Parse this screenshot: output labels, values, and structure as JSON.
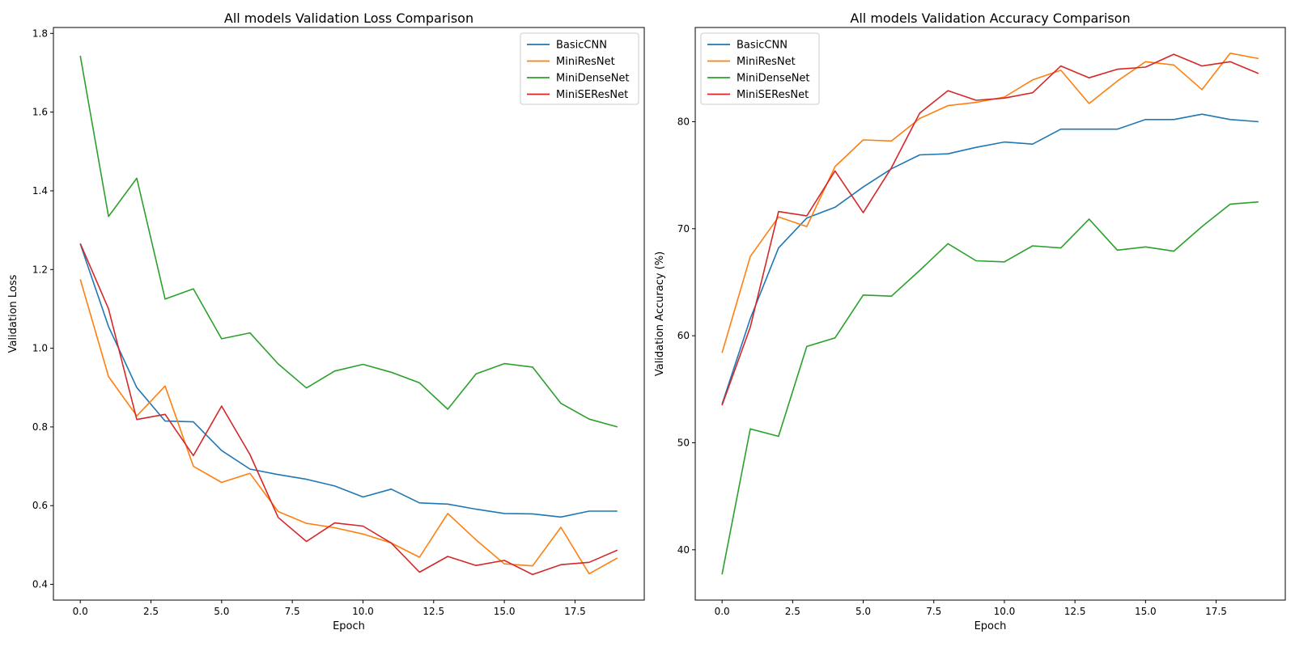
{
  "chart_data": [
    {
      "type": "line",
      "title": "All models Validation Loss Comparison",
      "xlabel": "Epoch",
      "ylabel": "Validation Loss",
      "xlim": [
        -0.95,
        19.95
      ],
      "ylim": [
        0.36,
        1.815
      ],
      "xticks": [
        0,
        2.5,
        5,
        7.5,
        10,
        12.5,
        15,
        17.5
      ],
      "xtick_labels": [
        "0.0",
        "2.5",
        "5.0",
        "7.5",
        "10.0",
        "12.5",
        "15.0",
        "17.5"
      ],
      "yticks": [
        0.4,
        0.6,
        0.8,
        1.0,
        1.2,
        1.4,
        1.6,
        1.8
      ],
      "ytick_labels": [
        "0.4",
        "0.6",
        "0.8",
        "1.0",
        "1.2",
        "1.4",
        "1.6",
        "1.8"
      ],
      "legend_position": "top-right",
      "grid": false,
      "x": [
        0,
        1,
        2,
        3,
        4,
        5,
        6,
        7,
        8,
        9,
        10,
        11,
        12,
        13,
        14,
        15,
        16,
        17,
        18,
        19
      ],
      "series": [
        {
          "name": "BasicCNN",
          "color": "#1f77b4",
          "values": [
            1.265,
            1.055,
            0.9,
            0.815,
            0.813,
            0.74,
            0.693,
            0.679,
            0.667,
            0.65,
            0.622,
            0.642,
            0.607,
            0.604,
            0.591,
            0.58,
            0.579,
            0.571,
            0.586,
            0.586
          ]
        },
        {
          "name": "MiniResNet",
          "color": "#ff7f0e",
          "values": [
            1.175,
            0.928,
            0.828,
            0.904,
            0.7,
            0.659,
            0.682,
            0.585,
            0.555,
            0.544,
            0.528,
            0.505,
            0.469,
            0.58,
            0.513,
            0.452,
            0.447,
            0.545,
            0.427,
            0.467
          ]
        },
        {
          "name": "MiniDenseNet",
          "color": "#2ca02c",
          "values": [
            1.743,
            1.335,
            1.432,
            1.125,
            1.151,
            1.024,
            1.039,
            0.96,
            0.899,
            0.942,
            0.959,
            0.939,
            0.912,
            0.845,
            0.935,
            0.961,
            0.952,
            0.86,
            0.82,
            0.8
          ]
        },
        {
          "name": "MiniSEResNet",
          "color": "#d62728",
          "values": [
            1.266,
            1.1,
            0.819,
            0.832,
            0.727,
            0.853,
            0.73,
            0.57,
            0.509,
            0.556,
            0.548,
            0.505,
            0.431,
            0.471,
            0.448,
            0.461,
            0.425,
            0.45,
            0.456,
            0.487
          ]
        }
      ]
    },
    {
      "type": "line",
      "title": "All models Validation Accuracy Comparison",
      "xlabel": "Epoch",
      "ylabel": "Validation Accuracy (%)",
      "xlim": [
        -0.95,
        19.95
      ],
      "ylim": [
        35.3,
        88.8
      ],
      "xticks": [
        0,
        2.5,
        5,
        7.5,
        10,
        12.5,
        15,
        17.5
      ],
      "xtick_labels": [
        "0.0",
        "2.5",
        "5.0",
        "7.5",
        "10.0",
        "12.5",
        "15.0",
        "17.5"
      ],
      "yticks": [
        40,
        50,
        60,
        70,
        80
      ],
      "ytick_labels": [
        "40",
        "50",
        "60",
        "70",
        "80"
      ],
      "legend_position": "top-left",
      "grid": false,
      "x": [
        0,
        1,
        2,
        3,
        4,
        5,
        6,
        7,
        8,
        9,
        10,
        11,
        12,
        13,
        14,
        15,
        16,
        17,
        18,
        19
      ],
      "series": [
        {
          "name": "BasicCNN",
          "color": "#1f77b4",
          "values": [
            53.6,
            61.6,
            68.2,
            71.0,
            72.0,
            73.9,
            75.6,
            76.9,
            77.0,
            77.6,
            78.1,
            77.9,
            79.3,
            79.3,
            79.3,
            80.2,
            80.2,
            80.7,
            80.2,
            80.0
          ]
        },
        {
          "name": "MiniResNet",
          "color": "#ff7f0e",
          "values": [
            58.4,
            67.4,
            71.1,
            70.2,
            75.8,
            78.3,
            78.2,
            80.3,
            81.5,
            81.8,
            82.3,
            83.9,
            84.8,
            81.7,
            83.8,
            85.6,
            85.3,
            83.0,
            86.4,
            85.9
          ]
        },
        {
          "name": "MiniDenseNet",
          "color": "#2ca02c",
          "values": [
            37.7,
            51.3,
            50.6,
            59.0,
            59.8,
            63.8,
            63.7,
            66.1,
            68.6,
            67.0,
            66.9,
            68.4,
            68.2,
            70.9,
            68.0,
            68.3,
            67.9,
            70.2,
            72.3,
            72.5
          ]
        },
        {
          "name": "MiniSEResNet",
          "color": "#d62728",
          "values": [
            53.5,
            60.8,
            71.6,
            71.2,
            75.4,
            71.5,
            75.7,
            80.8,
            82.9,
            82.0,
            82.2,
            82.7,
            85.2,
            84.1,
            84.9,
            85.1,
            86.3,
            85.2,
            85.6,
            84.5
          ]
        }
      ]
    }
  ]
}
